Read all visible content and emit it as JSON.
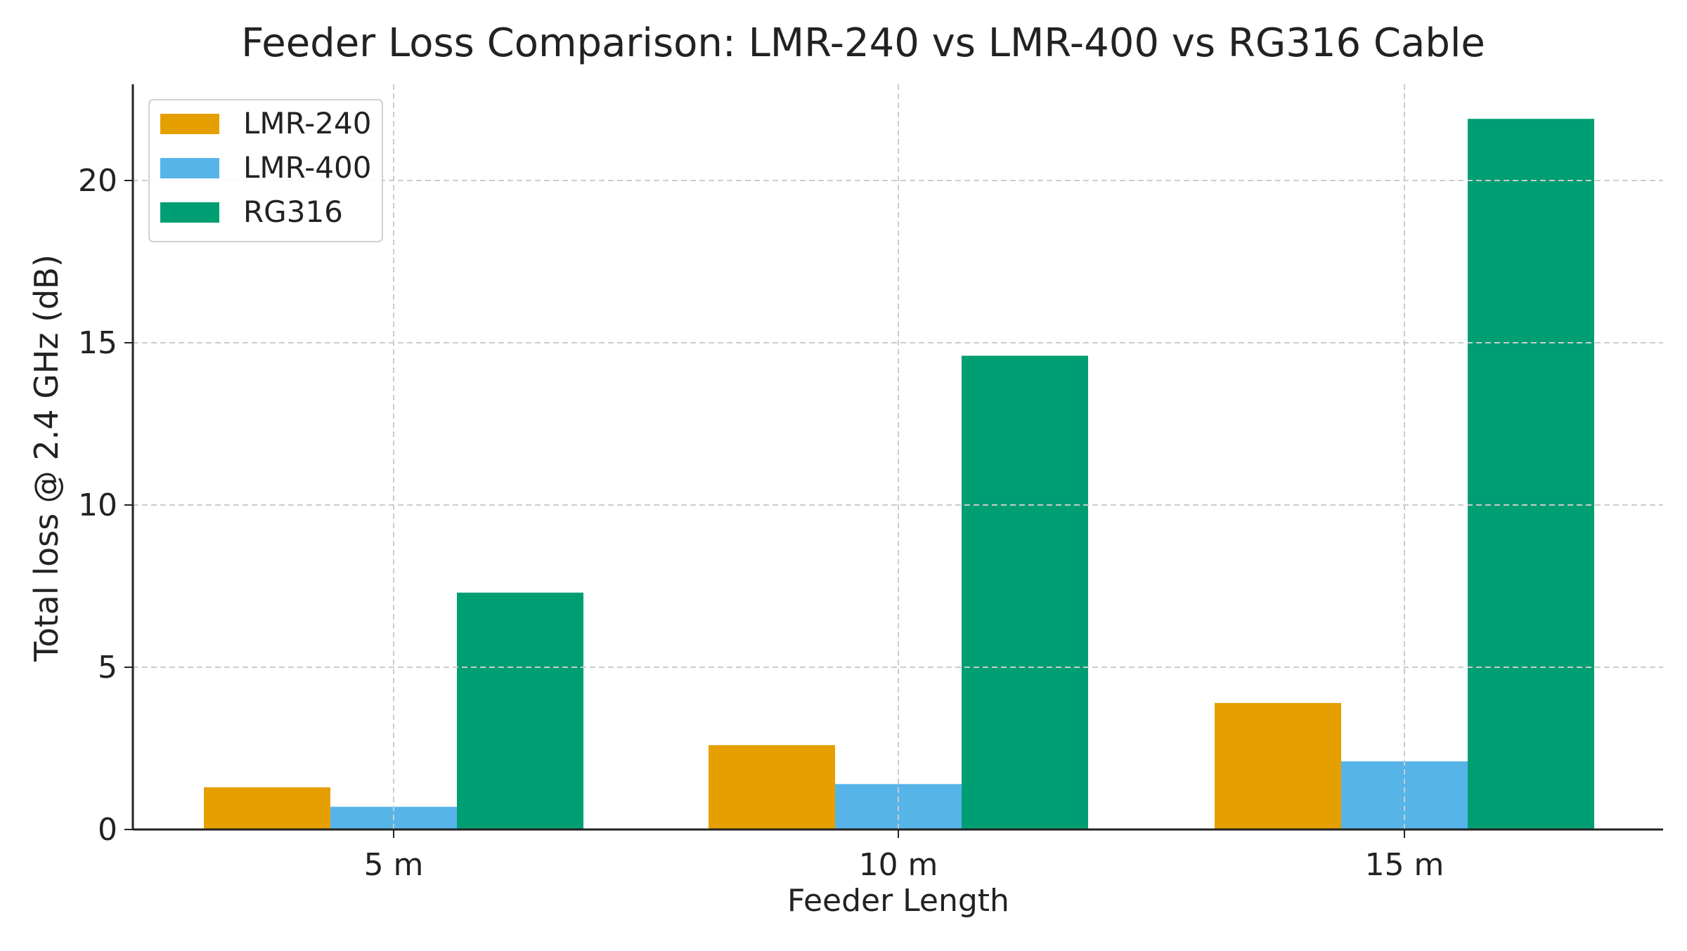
{
  "chart_data": {
    "type": "bar",
    "title": "Feeder Loss Comparison: LMR-240 vs LMR-400 vs RG316 Cable",
    "xlabel": "Feeder Length",
    "ylabel": "Total loss @ 2.4 GHz (dB)",
    "categories": [
      "5 m",
      "10 m",
      "15 m"
    ],
    "series": [
      {
        "name": "LMR-240",
        "color": "#E69F00",
        "values": [
          1.3,
          2.6,
          3.9
        ]
      },
      {
        "name": "LMR-400",
        "color": "#56B4E9",
        "values": [
          0.7,
          1.4,
          2.1
        ]
      },
      {
        "name": "RG316",
        "color": "#009E73",
        "values": [
          7.3,
          14.6,
          21.9
        ]
      }
    ],
    "ylim": [
      0,
      23
    ],
    "yticks": [
      "0",
      "5",
      "10",
      "15",
      "20"
    ],
    "grid": true,
    "legend": "top-left"
  }
}
